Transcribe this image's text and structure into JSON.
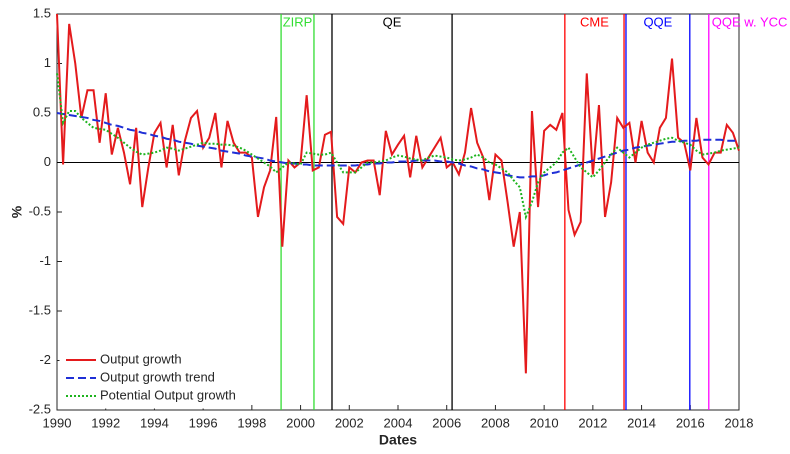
{
  "chart_data": {
    "type": "line",
    "xlabel": "Dates",
    "ylabel": "%",
    "xlim": [
      1990,
      2018
    ],
    "ylim": [
      -2.5,
      1.5
    ],
    "xticks": [
      1990,
      1992,
      1994,
      1996,
      1998,
      2000,
      2002,
      2004,
      2006,
      2008,
      2010,
      2012,
      2014,
      2016,
      2018
    ],
    "yticks": [
      -2.5,
      -2,
      -1.5,
      -1,
      -0.5,
      0,
      0.5,
      1,
      1.5
    ],
    "grid": false,
    "legend": "lower left",
    "x": [
      1990,
      1990.25,
      1990.5,
      1990.75,
      1991,
      1991.25,
      1991.5,
      1991.75,
      1992,
      1992.25,
      1992.5,
      1992.75,
      1993,
      1993.25,
      1993.5,
      1993.75,
      1994,
      1994.25,
      1994.5,
      1994.75,
      1995,
      1995.25,
      1995.5,
      1995.75,
      1996,
      1996.25,
      1996.5,
      1996.75,
      1997,
      1997.25,
      1997.5,
      1997.75,
      1998,
      1998.25,
      1998.5,
      1998.75,
      1999,
      1999.25,
      1999.5,
      1999.75,
      2000,
      2000.25,
      2000.5,
      2000.75,
      2001,
      2001.25,
      2001.5,
      2001.75,
      2002,
      2002.25,
      2002.5,
      2002.75,
      2003,
      2003.25,
      2003.5,
      2003.75,
      2004,
      2004.25,
      2004.5,
      2004.75,
      2005,
      2005.25,
      2005.5,
      2005.75,
      2006,
      2006.25,
      2006.5,
      2006.75,
      2007,
      2007.25,
      2007.5,
      2007.75,
      2008,
      2008.25,
      2008.5,
      2008.75,
      2009,
      2009.25,
      2009.5,
      2009.75,
      2010,
      2010.25,
      2010.5,
      2010.75,
      2011,
      2011.25,
      2011.5,
      2011.75,
      2012,
      2012.25,
      2012.5,
      2012.75,
      2013,
      2013.25,
      2013.5,
      2013.75,
      2014,
      2014.25,
      2014.5,
      2014.75,
      2015,
      2015.25,
      2015.5,
      2015.75,
      2016,
      2016.25,
      2016.5,
      2016.75,
      2017,
      2017.25,
      2017.5,
      2017.75,
      2018
    ],
    "series": [
      {
        "name": "Output growth",
        "color": "#e41a1c",
        "dash": "solid",
        "values": [
          1.5,
          -0.02,
          1.4,
          1.0,
          0.45,
          0.73,
          0.73,
          0.2,
          0.7,
          0.08,
          0.35,
          0.1,
          -0.22,
          0.35,
          -0.45,
          -0.05,
          0.3,
          0.4,
          -0.05,
          0.38,
          -0.13,
          0.22,
          0.45,
          0.52,
          0.15,
          0.25,
          0.5,
          -0.05,
          0.42,
          0.2,
          0.1,
          0.1,
          0.05,
          -0.55,
          -0.25,
          -0.08,
          0.46,
          -0.85,
          0.02,
          -0.05,
          0.0,
          0.68,
          -0.08,
          -0.05,
          0.28,
          0.31,
          -0.55,
          -0.62,
          -0.05,
          -0.1,
          0.0,
          0.02,
          0.02,
          -0.33,
          0.32,
          0.08,
          0.18,
          0.27,
          -0.15,
          0.27,
          -0.05,
          0.05,
          0.15,
          0.25,
          -0.05,
          0.0,
          -0.12,
          0.1,
          0.55,
          0.2,
          0.05,
          -0.38,
          0.08,
          0.02,
          -0.4,
          -0.85,
          -0.5,
          -2.13,
          0.52,
          -0.45,
          0.32,
          0.38,
          0.33,
          0.5,
          -0.48,
          -0.73,
          -0.6,
          0.9,
          -0.12,
          0.58,
          -0.55,
          -0.2,
          0.45,
          0.35,
          0.4,
          0.0,
          0.42,
          0.1,
          0.0,
          0.35,
          0.45,
          1.05,
          0.25,
          0.2,
          -0.08,
          0.45,
          0.05,
          -0.02,
          0.1,
          0.1,
          0.38,
          0.3,
          0.12
        ]
      },
      {
        "name": "Output growth trend",
        "color": "#1f2fd6",
        "dash": "dashed",
        "values": [
          0.5,
          0.49,
          0.48,
          0.47,
          0.46,
          0.45,
          0.43,
          0.42,
          0.4,
          0.38,
          0.37,
          0.35,
          0.33,
          0.32,
          0.3,
          0.29,
          0.27,
          0.26,
          0.24,
          0.23,
          0.21,
          0.2,
          0.19,
          0.17,
          0.16,
          0.15,
          0.14,
          0.12,
          0.11,
          0.1,
          0.09,
          0.07,
          0.06,
          0.05,
          0.04,
          0.02,
          0.01,
          0.0,
          -0.01,
          -0.01,
          -0.02,
          -0.02,
          -0.03,
          -0.03,
          -0.03,
          -0.03,
          -0.03,
          -0.03,
          -0.03,
          -0.03,
          -0.02,
          -0.02,
          -0.01,
          -0.01,
          0.0,
          0.0,
          0.01,
          0.01,
          0.01,
          0.02,
          0.02,
          0.02,
          0.02,
          0.01,
          0.01,
          0.0,
          -0.01,
          -0.03,
          -0.04,
          -0.06,
          -0.07,
          -0.09,
          -0.1,
          -0.11,
          -0.13,
          -0.14,
          -0.15,
          -0.15,
          -0.14,
          -0.14,
          -0.13,
          -0.11,
          -0.1,
          -0.08,
          -0.06,
          -0.04,
          -0.02,
          0.0,
          0.02,
          0.04,
          0.06,
          0.08,
          0.1,
          0.12,
          0.13,
          0.15,
          0.16,
          0.17,
          0.18,
          0.19,
          0.2,
          0.21,
          0.21,
          0.22,
          0.22,
          0.22,
          0.23,
          0.23,
          0.23,
          0.23,
          0.22,
          0.22,
          0.22
        ]
      },
      {
        "name": "Potential Output growth",
        "color": "#1db31d",
        "dash": "dotted",
        "values": [
          0.9,
          0.4,
          0.52,
          0.52,
          0.45,
          0.4,
          0.35,
          0.34,
          0.33,
          0.29,
          0.25,
          0.2,
          0.15,
          0.11,
          0.08,
          0.09,
          0.1,
          0.12,
          0.15,
          0.14,
          0.12,
          0.14,
          0.16,
          0.18,
          0.2,
          0.19,
          0.19,
          0.18,
          0.18,
          0.17,
          0.15,
          0.12,
          0.08,
          0.04,
          0.0,
          -0.04,
          -0.1,
          -0.05,
          0.0,
          -0.01,
          -0.02,
          0.1,
          0.09,
          0.08,
          0.08,
          0.1,
          0.0,
          -0.1,
          -0.1,
          -0.1,
          -0.05,
          0.0,
          0.0,
          0.01,
          0.02,
          0.05,
          0.07,
          0.06,
          0.04,
          0.03,
          0.02,
          0.05,
          0.07,
          0.06,
          0.05,
          0.03,
          0.02,
          0.03,
          0.05,
          0.08,
          0.05,
          0.0,
          -0.02,
          -0.06,
          -0.1,
          -0.18,
          -0.25,
          -0.55,
          -0.4,
          -0.2,
          -0.1,
          -0.05,
          0.0,
          0.1,
          0.15,
          0.05,
          -0.05,
          -0.1,
          -0.15,
          -0.08,
          0.0,
          0.08,
          0.15,
          0.1,
          0.05,
          0.1,
          0.15,
          0.18,
          0.2,
          0.22,
          0.24,
          0.25,
          0.22,
          0.2,
          0.18,
          0.12,
          0.08,
          0.09,
          0.1,
          0.12,
          0.13,
          0.14,
          0.15
        ]
      }
    ],
    "events": [
      {
        "label": "ZIRP",
        "color": "#33dd33",
        "start": 1999.2,
        "end": 2000.55
      },
      {
        "label": "QE",
        "color": "#000000",
        "start": 2001.29,
        "end": 2006.22
      },
      {
        "label": "CME",
        "color": "#ff0000",
        "start": 2010.85,
        "end": 2013.28
      },
      {
        "label": "QQE",
        "color": "#0000ff",
        "start": 2013.36,
        "end": 2015.98
      },
      {
        "label": "QQE w. YCC",
        "color": "#ff00ff",
        "start": 2016.76
      }
    ]
  }
}
